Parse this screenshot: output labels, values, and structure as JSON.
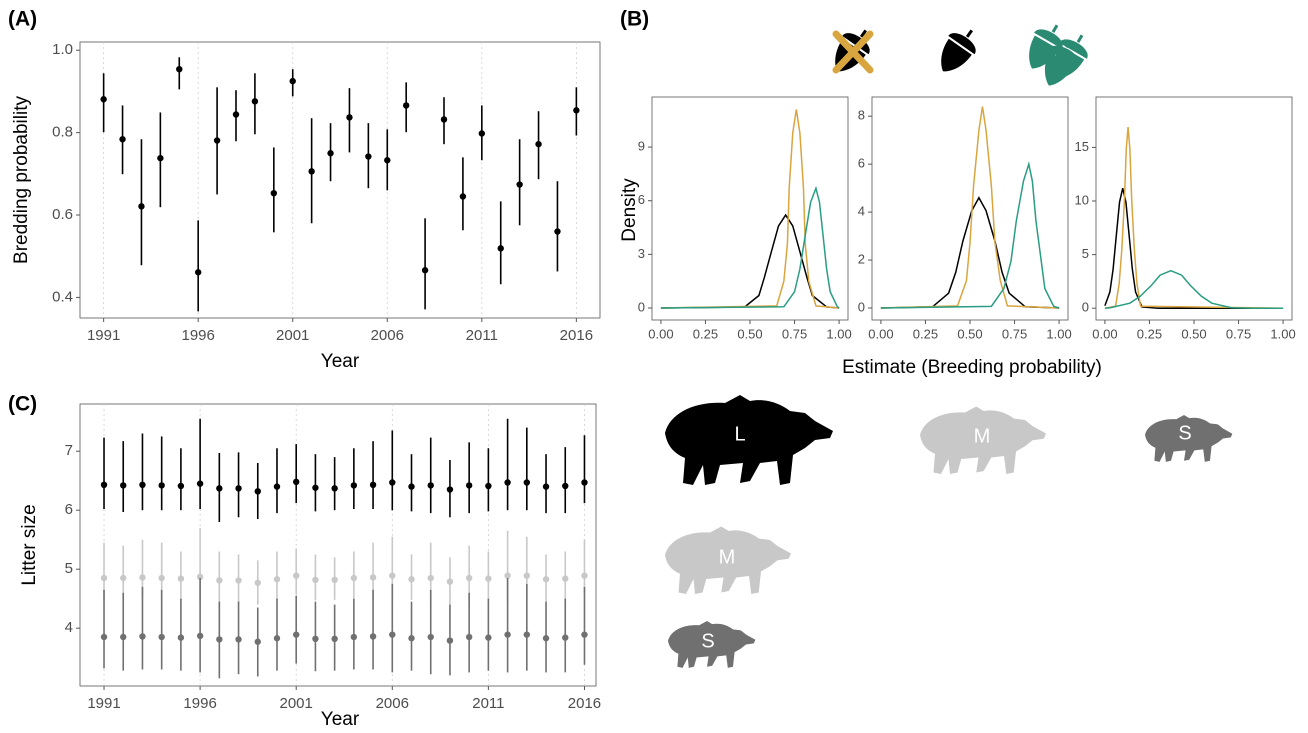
{
  "chart_data": [
    {
      "type": "pointrange",
      "panel_label": "(A)",
      "x_label": "Year",
      "y_label": "Bredding probability",
      "x": [
        1991,
        1992,
        1993,
        1994,
        1995,
        1996,
        1997,
        1998,
        1999,
        2000,
        2001,
        2002,
        2003,
        2004,
        2005,
        2006,
        2007,
        2008,
        2009,
        2010,
        2011,
        2012,
        2013,
        2014,
        2015,
        2016
      ],
      "values": [
        0.881,
        0.784,
        0.621,
        0.738,
        0.954,
        0.461,
        0.781,
        0.844,
        0.876,
        0.653,
        0.925,
        0.706,
        0.75,
        0.837,
        0.742,
        0.733,
        0.866,
        0.466,
        0.832,
        0.645,
        0.798,
        0.519,
        0.674,
        0.772,
        0.56,
        0.854
      ],
      "lower": [
        0.801,
        0.699,
        0.478,
        0.619,
        0.905,
        0.366,
        0.65,
        0.779,
        0.796,
        0.558,
        0.888,
        0.58,
        0.682,
        0.752,
        0.665,
        0.66,
        0.801,
        0.371,
        0.772,
        0.563,
        0.733,
        0.432,
        0.575,
        0.687,
        0.463,
        0.793
      ],
      "upper": [
        0.944,
        0.866,
        0.784,
        0.849,
        0.983,
        0.587,
        0.91,
        0.903,
        0.944,
        0.764,
        0.954,
        0.835,
        0.823,
        0.908,
        0.823,
        0.808,
        0.922,
        0.592,
        0.886,
        0.74,
        0.866,
        0.633,
        0.784,
        0.852,
        0.682,
        0.91
      ],
      "color": "#000000",
      "xlim": [
        1989.75,
        2017.25
      ],
      "ylim": [
        0.35,
        1.02
      ],
      "xticks": [
        1991,
        1996,
        2001,
        2006,
        2011,
        2016
      ],
      "yticks": [
        0.4,
        0.6,
        0.8,
        {
          "value": 1.0,
          "label": "1.0"
        }
      ],
      "grid": true
    },
    {
      "type": "line",
      "panel_label": "(B)",
      "y_label": "Density",
      "xlim": [
        -0.05,
        1.05
      ],
      "ylim": [
        -0.67,
        11.8
      ],
      "xticks": [
        {
          "value": 0,
          "label": "0.00"
        },
        {
          "value": 0.25,
          "label": "0.25"
        },
        {
          "value": 0.5,
          "label": "0.50"
        },
        {
          "value": 0.75,
          "label": "0.75"
        },
        {
          "value": 1,
          "label": "1.00"
        }
      ],
      "yticks": [
        0,
        3,
        6,
        9
      ],
      "series": [
        {
          "color": "#000000",
          "x": [
            0,
            0.47,
            0.55,
            0.58,
            0.62,
            0.66,
            0.7,
            0.74,
            0.78,
            0.82,
            0.85,
            0.93,
            1
          ],
          "values": [
            0,
            0.06,
            0.7,
            1.69,
            3.15,
            4.59,
            5.2,
            4.59,
            3.15,
            1.69,
            0.7,
            0.06,
            0
          ]
        },
        {
          "color": "#d9a53f",
          "x": [
            0,
            0.65,
            0.69,
            0.71,
            0.72,
            0.74,
            0.76,
            0.78,
            0.8,
            0.81,
            0.83,
            0.87,
            1
          ],
          "values": [
            0,
            0.12,
            1.5,
            3.6,
            6.73,
            9.79,
            11.1,
            9.79,
            6.73,
            3.6,
            1.5,
            0.12,
            0
          ]
        },
        {
          "color": "#2a9d82",
          "x": [
            0,
            0.69,
            0.75,
            0.78,
            0.81,
            0.84,
            0.87,
            0.89,
            0.91,
            0.93,
            0.95,
            0.99,
            1
          ],
          "values": [
            0,
            0.07,
            0.91,
            2.18,
            4.06,
            5.91,
            6.7,
            5.91,
            4.06,
            2.18,
            0.91,
            0.07,
            0
          ]
        }
      ]
    },
    {
      "type": "line",
      "x_label": "Estimate (Breeding probability)",
      "xlim": [
        -0.05,
        1.05
      ],
      "ylim": [
        -0.5,
        8.8
      ],
      "xticks": [
        {
          "value": 0,
          "label": "0.00"
        },
        {
          "value": 0.25,
          "label": "0.25"
        },
        {
          "value": 0.5,
          "label": "0.50"
        },
        {
          "value": 0.75,
          "label": "0.75"
        },
        {
          "value": 1,
          "label": "1.00"
        }
      ],
      "yticks": [
        0,
        2,
        4,
        6,
        8
      ],
      "series": [
        {
          "color": "#000000",
          "x": [
            0,
            0.29,
            0.38,
            0.42,
            0.46,
            0.51,
            0.55,
            0.59,
            0.64,
            0.68,
            0.72,
            0.81,
            1
          ],
          "values": [
            0,
            0.05,
            0.62,
            1.49,
            2.79,
            4.06,
            4.6,
            4.06,
            2.79,
            1.49,
            0.62,
            0.05,
            0
          ]
        },
        {
          "color": "#d9a53f",
          "x": [
            0,
            0.43,
            0.48,
            0.5,
            0.52,
            0.55,
            0.57,
            0.59,
            0.62,
            0.64,
            0.67,
            0.71,
            1
          ],
          "values": [
            0,
            0.09,
            1.14,
            2.73,
            5.09,
            7.41,
            8.4,
            7.41,
            5.09,
            2.73,
            1.14,
            0.09,
            0
          ]
        },
        {
          "color": "#2a9d82",
          "x": [
            0,
            0.62,
            0.69,
            0.73,
            0.76,
            0.8,
            0.83,
            0.85,
            0.87,
            0.9,
            0.92,
            0.97,
            1
          ],
          "values": [
            0,
            0.07,
            0.81,
            1.95,
            3.64,
            5.29,
            6.0,
            5.29,
            3.64,
            1.95,
            0.81,
            0.07,
            0
          ]
        }
      ]
    },
    {
      "type": "line",
      "xlim": [
        -0.05,
        1.05
      ],
      "ylim": [
        -1.1,
        19.7
      ],
      "xticks": [
        {
          "value": 0,
          "label": "0.00"
        },
        {
          "value": 0.25,
          "label": "0.25"
        },
        {
          "value": 0.5,
          "label": "0.50"
        },
        {
          "value": 0.75,
          "label": "0.75"
        },
        {
          "value": 1,
          "label": "1.00"
        }
      ],
      "yticks": [
        0,
        5,
        10,
        15
      ],
      "series": [
        {
          "color": "#000000",
          "x": [
            0,
            0.028,
            0.046,
            0.064,
            0.082,
            0.1,
            0.118,
            0.136,
            0.154,
            0.172,
            0.208,
            0.3,
            1
          ],
          "values": [
            0.23,
            1.52,
            3.64,
            6.79,
            9.88,
            11.2,
            9.88,
            6.79,
            3.64,
            1.52,
            0.12,
            0,
            0
          ]
        },
        {
          "color": "#d9a53f",
          "x": [
            0,
            0.06,
            0.08,
            0.095,
            0.11,
            0.12,
            0.13,
            0.14,
            0.15,
            0.165,
            0.18,
            0.2,
            1
          ],
          "values": [
            0,
            0.19,
            2.29,
            5.49,
            10.25,
            14.9,
            16.9,
            14.9,
            10.25,
            5.49,
            2.29,
            0.19,
            0
          ]
        },
        {
          "color": "#2a9d82",
          "x": [
            0,
            0.03,
            0.14,
            0.2,
            0.26,
            0.31,
            0.37,
            0.43,
            0.48,
            0.54,
            0.6,
            0.71,
            0.83,
            1
          ],
          "values": [
            0,
            0.04,
            0.47,
            1.14,
            2.12,
            3.09,
            3.5,
            3.09,
            2.12,
            1.14,
            0.47,
            0.04,
            0,
            0
          ]
        }
      ]
    },
    {
      "type": "pointrange",
      "panel_label": "(C)",
      "x_label": "Year",
      "y_label": "Litter size",
      "x": [
        1991,
        1992,
        1993,
        1994,
        1995,
        1996,
        1997,
        1998,
        1999,
        2000,
        2001,
        2002,
        2003,
        2004,
        2005,
        2006,
        2007,
        2008,
        2009,
        2010,
        2011,
        2012,
        2013,
        2014,
        2015,
        2016
      ],
      "xlim": [
        1989.75,
        2016.6
      ],
      "ylim": [
        3.02,
        7.8
      ],
      "xticks": [
        1991,
        1996,
        2001,
        2006,
        2011,
        2016
      ],
      "yticks": [
        4,
        5,
        6,
        7
      ],
      "grid": true,
      "series": [
        {
          "name": "L",
          "color": "#000000",
          "values": [
            6.43,
            6.42,
            6.43,
            6.42,
            6.41,
            6.45,
            6.37,
            6.37,
            6.32,
            6.4,
            6.48,
            6.38,
            6.37,
            6.42,
            6.43,
            6.47,
            6.4,
            6.42,
            6.35,
            6.42,
            6.41,
            6.47,
            6.47,
            6.4,
            6.41,
            6.47
          ],
          "lower": [
            6.02,
            5.97,
            6.0,
            6.0,
            6.0,
            6.02,
            5.8,
            5.88,
            5.85,
            5.95,
            6.12,
            5.98,
            6.0,
            6.02,
            6.02,
            6.0,
            5.98,
            5.95,
            5.88,
            5.95,
            5.98,
            6.0,
            6.0,
            5.95,
            5.95,
            6.12
          ],
          "upper": [
            7.23,
            7.17,
            7.3,
            7.25,
            7.05,
            7.55,
            6.97,
            6.98,
            6.8,
            7.05,
            7.12,
            6.95,
            6.9,
            7.05,
            7.17,
            7.35,
            6.95,
            7.23,
            6.85,
            7.15,
            7.05,
            7.55,
            7.4,
            6.95,
            7.07,
            7.27
          ]
        },
        {
          "name": "M",
          "color": "#c8c8c8",
          "values": [
            4.85,
            4.85,
            4.86,
            4.85,
            4.84,
            4.87,
            4.81,
            4.81,
            4.77,
            4.83,
            4.89,
            4.82,
            4.82,
            4.85,
            4.86,
            4.89,
            4.83,
            4.85,
            4.79,
            4.85,
            4.84,
            4.89,
            4.89,
            4.83,
            4.84,
            4.89
          ],
          "lower": [
            4.5,
            4.48,
            4.5,
            4.5,
            4.48,
            4.45,
            4.35,
            4.42,
            4.4,
            4.48,
            4.58,
            4.47,
            4.48,
            4.5,
            4.5,
            4.45,
            4.48,
            4.42,
            4.4,
            4.45,
            4.48,
            4.45,
            4.48,
            4.45,
            4.45,
            4.58
          ],
          "upper": [
            5.45,
            5.4,
            5.5,
            5.45,
            5.3,
            5.7,
            5.3,
            5.25,
            5.15,
            5.3,
            5.35,
            5.25,
            5.2,
            5.3,
            5.45,
            5.55,
            5.25,
            5.45,
            5.2,
            5.4,
            5.3,
            5.65,
            5.55,
            5.25,
            5.3,
            5.5
          ]
        },
        {
          "name": "S",
          "color": "#707070",
          "values": [
            3.85,
            3.85,
            3.86,
            3.85,
            3.84,
            3.87,
            3.81,
            3.81,
            3.77,
            3.83,
            3.89,
            3.82,
            3.82,
            3.85,
            3.86,
            3.89,
            3.83,
            3.85,
            3.79,
            3.85,
            3.84,
            3.89,
            3.89,
            3.83,
            3.84,
            3.89
          ],
          "lower": [
            3.32,
            3.28,
            3.3,
            3.3,
            3.28,
            3.25,
            3.15,
            3.22,
            3.18,
            3.28,
            3.4,
            3.27,
            3.28,
            3.3,
            3.3,
            3.25,
            3.28,
            3.22,
            3.2,
            3.25,
            3.28,
            3.25,
            3.28,
            3.25,
            3.25,
            3.38
          ],
          "upper": [
            4.65,
            4.6,
            4.7,
            4.65,
            4.5,
            4.85,
            4.45,
            4.45,
            4.35,
            4.5,
            4.55,
            4.45,
            4.4,
            4.5,
            4.65,
            4.75,
            4.45,
            4.65,
            4.4,
            4.6,
            4.5,
            4.85,
            4.75,
            4.45,
            4.5,
            4.7
          ]
        }
      ]
    }
  ]
}
